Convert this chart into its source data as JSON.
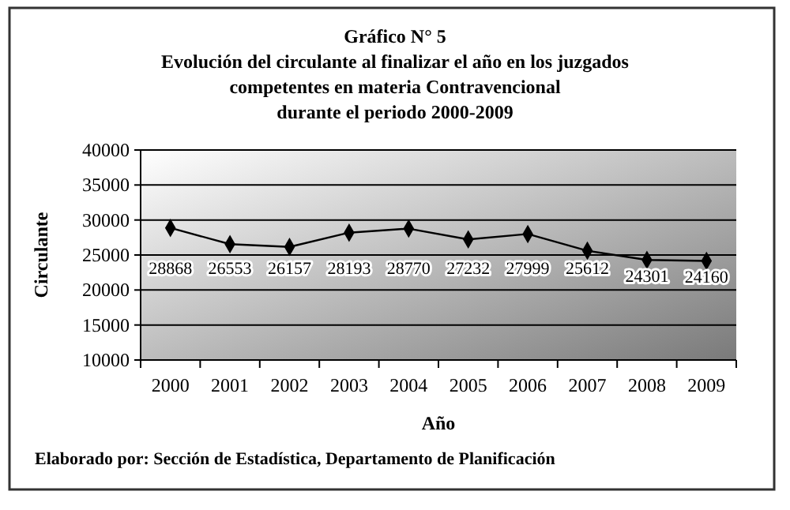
{
  "chart_data": {
    "type": "line",
    "title": "Gráfico N° 5",
    "subtitle": "Evolución del circulante al finalizar el año en los juzgados\ncompetentes en materia Contravencional\ndurante el periodo 2000-2009",
    "xlabel": "Año",
    "ylabel": "Circulante",
    "categories": [
      "2000",
      "2001",
      "2002",
      "2003",
      "2004",
      "2005",
      "2006",
      "2007",
      "2008",
      "2009"
    ],
    "series": [
      {
        "color": "#000000",
        "values": [
          28868,
          26553,
          26157,
          28193,
          28770,
          27232,
          27999,
          25612,
          24301,
          24160
        ]
      }
    ],
    "ylim": [
      10000,
      40000
    ],
    "yticks": [
      10000,
      15000,
      20000,
      25000,
      30000,
      35000,
      40000
    ],
    "grid": "y",
    "marker": "diamond",
    "data_labels": true,
    "annotations": [
      "Elaborado por: Sección de Estadística, Departamento de Planificación"
    ]
  }
}
